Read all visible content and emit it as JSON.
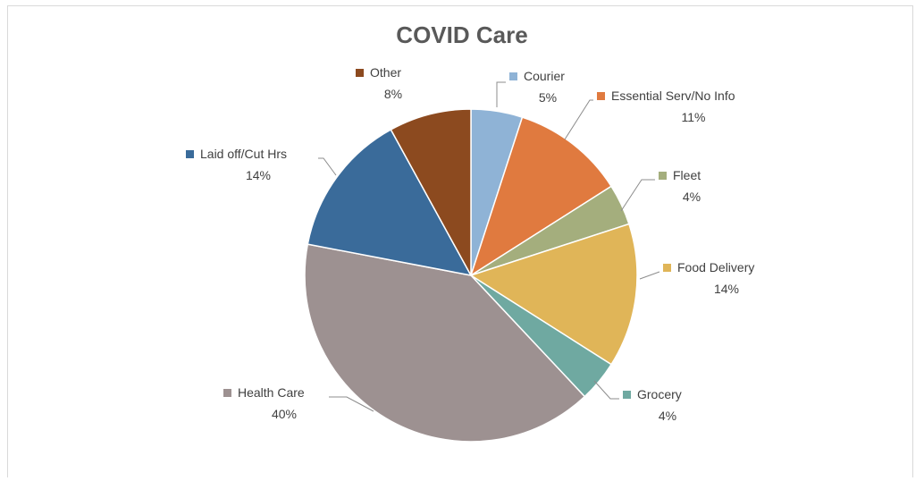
{
  "chart_data": {
    "type": "pie",
    "title": "COVID Care",
    "slices": [
      {
        "label": "Courier",
        "pct_label": "5%",
        "value": 5,
        "color": "#8fb3d6"
      },
      {
        "label": "Essential Serv/No Info",
        "pct_label": "11%",
        "value": 11,
        "color": "#e07a3f"
      },
      {
        "label": "Fleet",
        "pct_label": "4%",
        "value": 4,
        "color": "#a4ae7d"
      },
      {
        "label": "Food Delivery",
        "pct_label": "14%",
        "value": 14,
        "color": "#e0b558"
      },
      {
        "label": "Grocery",
        "pct_label": "4%",
        "value": 4,
        "color": "#6fa9a1"
      },
      {
        "label": "Health Care",
        "pct_label": "40%",
        "value": 40,
        "color": "#9d9191"
      },
      {
        "label": "Laid off/Cut Hrs",
        "pct_label": "14%",
        "value": 14,
        "color": "#3a6b9a"
      },
      {
        "label": "Other",
        "pct_label": "8%",
        "value": 8,
        "color": "#8c4a1f"
      }
    ],
    "legend": "none",
    "data_labels": "outside-with-leader-lines"
  }
}
